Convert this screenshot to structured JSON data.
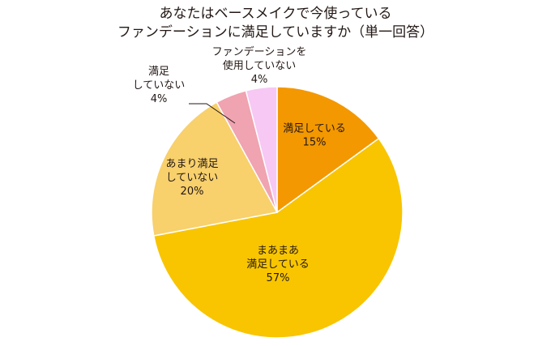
{
  "chart_data": {
    "type": "pie",
    "title_lines": [
      "あなたはベースメイクで今使っている",
      "ファンデーションに満足していますか（単一回答）"
    ],
    "start_angle": "12 o'clock",
    "direction": "clockwise",
    "slices": [
      {
        "label_lines": [
          "満足している"
        ],
        "value": 15,
        "value_label": "15%",
        "color": "#f39800"
      },
      {
        "label_lines": [
          "まあまあ",
          "満足している"
        ],
        "value": 57,
        "value_label": "57%",
        "color": "#f8c500"
      },
      {
        "label_lines": [
          "あまり満足",
          "していない"
        ],
        "value": 20,
        "value_label": "20%",
        "color": "#f8d06c"
      },
      {
        "label_lines": [
          "満足",
          "していない"
        ],
        "value": 4,
        "value_label": "4%",
        "color": "#f0a3b0"
      },
      {
        "label_lines": [
          "ファンデーションを",
          "使用していない"
        ],
        "value": 4,
        "value_label": "4%",
        "color": "#f7c8f4"
      }
    ]
  }
}
